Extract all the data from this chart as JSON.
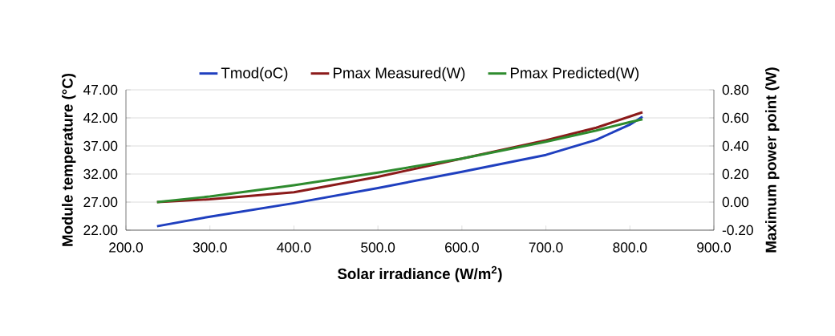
{
  "chart_data": {
    "type": "line",
    "xlabel": "Solar irradiance (W/m$^{2}$)",
    "ylabel": "Module temperature (°C)",
    "y2label": "Maximum power point (W)",
    "xlim": [
      200,
      900
    ],
    "xticks": [
      {
        "value": 200,
        "label": "200.0"
      },
      {
        "value": 300,
        "label": "300.0"
      },
      {
        "value": 400,
        "label": "400.0"
      },
      {
        "value": 500,
        "label": "500.0"
      },
      {
        "value": 600,
        "label": "600.0"
      },
      {
        "value": 700,
        "label": "700.0"
      },
      {
        "value": 800,
        "label": "800.0"
      },
      {
        "value": 900,
        "label": "900.0"
      }
    ],
    "ylim": [
      22,
      47
    ],
    "yticks": [
      {
        "value": 22,
        "label": "22.00"
      },
      {
        "value": 27,
        "label": "27.00"
      },
      {
        "value": 32,
        "label": "32.00"
      },
      {
        "value": 37,
        "label": "37.00"
      },
      {
        "value": 42,
        "label": "42.00"
      },
      {
        "value": 47,
        "label": "47.00"
      }
    ],
    "y2lim": [
      -0.2,
      0.8
    ],
    "y2ticks": [
      {
        "value": -0.2,
        "label": "-0.20"
      },
      {
        "value": 0,
        "label": "0.00"
      },
      {
        "value": 0.2,
        "label": "0.20"
      },
      {
        "value": 0.4,
        "label": "0.40"
      },
      {
        "value": 0.6,
        "label": "0.60"
      },
      {
        "value": 0.8,
        "label": "0.80"
      }
    ],
    "x": [
      237,
      300,
      400,
      500,
      600,
      700,
      760,
      800,
      815
    ],
    "series": [
      {
        "name": "Tmod(oC)",
        "color": "#1f3fbf",
        "values": [
          22.7,
          24.4,
          26.8,
          29.5,
          32.4,
          35.4,
          38.1,
          40.8,
          42.2
        ]
      },
      {
        "name": "Pmax Measured(W)",
        "color": "#8b1a1a",
        "axis": "y2",
        "values": [
          0.0,
          0.02,
          0.07,
          0.18,
          0.31,
          0.44,
          0.53,
          0.61,
          0.64
        ]
      },
      {
        "name": "Pmax Predicted(W)",
        "color": "#2e8b2e",
        "axis": "y2",
        "values": [
          0.0,
          0.04,
          0.12,
          0.21,
          0.31,
          0.43,
          0.51,
          0.57,
          0.59
        ]
      }
    ],
    "grid": "y",
    "legend": "top",
    "marker": "none"
  }
}
